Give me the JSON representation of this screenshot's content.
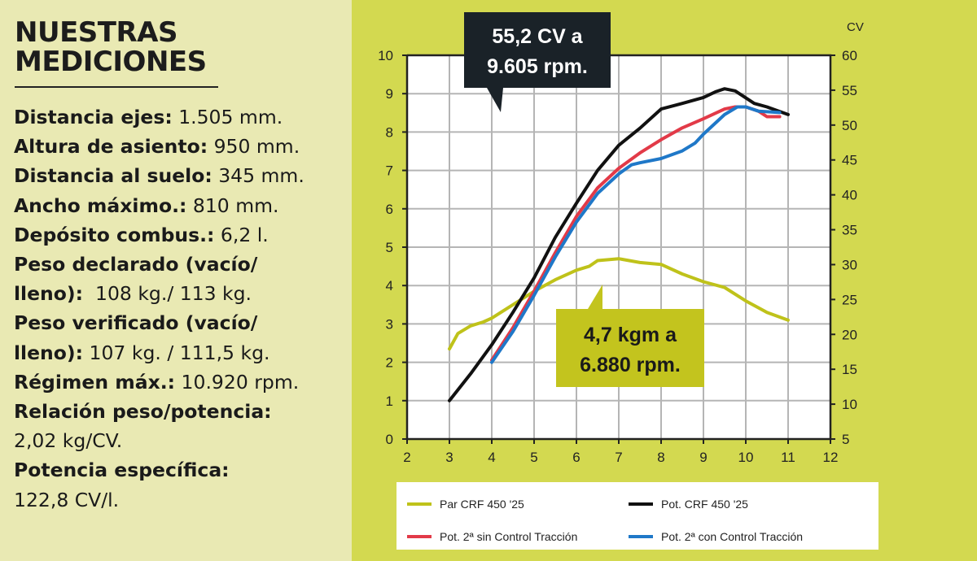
{
  "panel": {
    "title_line1": "NUESTRAS",
    "title_line2": "MEDICIONES",
    "specs": [
      {
        "label": "Distancia ejes:",
        "value": " 1.505 mm."
      },
      {
        "label": "Altura de asiento:",
        "value": " 950 mm."
      },
      {
        "label": "Distancia al suelo:",
        "value": " 345 mm."
      },
      {
        "label": "Ancho máximo.:",
        "value": " 810 mm."
      },
      {
        "label": "Depósito combus.:",
        "value": " 6,2 l."
      },
      {
        "label": "Peso declarado (vacío/",
        "value": ""
      },
      {
        "label": "lleno):",
        "value": "  108 kg./ 113 kg."
      },
      {
        "label": "Peso verificado (vacío/",
        "value": ""
      },
      {
        "label": "lleno):",
        "value": " 107 kg. / 111,5 kg."
      },
      {
        "label": "Régimen máx.:",
        "value": " 10.920 rpm."
      },
      {
        "label": "Relación peso/potencia:",
        "value": ""
      },
      {
        "label": "",
        "value": "2,02 kg/CV."
      },
      {
        "label": "Potencia específica:",
        "value": ""
      },
      {
        "label": "",
        "value": "122,8 CV/l."
      }
    ]
  },
  "chart_data": {
    "type": "line",
    "xlabel": "",
    "ylabel_left": "",
    "ylabel_right": "CV",
    "xlim": [
      2,
      12
    ],
    "xticks": [
      "2",
      "3",
      "4",
      "5",
      "6",
      "7",
      "8",
      "9",
      "10",
      "11",
      "12"
    ],
    "ylim_left": [
      0,
      10
    ],
    "yticks_left": [
      "0",
      "1",
      "2",
      "3",
      "4",
      "5",
      "6",
      "7",
      "8",
      "9",
      "10"
    ],
    "ylim_right": [
      5,
      60
    ],
    "yticks_right": [
      "5",
      "10",
      "15",
      "20",
      "25",
      "30",
      "35",
      "40",
      "45",
      "50",
      "55",
      "60"
    ],
    "grid": true,
    "legend_placement": "bottom",
    "annotations": {
      "power_peak_line1": "55,2 CV a",
      "power_peak_line2": "9.605 rpm.",
      "torque_peak_line1": "4,7 kgm a",
      "torque_peak_line2": "6.880 rpm."
    },
    "series": [
      {
        "name": "Par CRF 450 '25",
        "axis": "left",
        "color": "#bfc21a",
        "x": [
          3,
          3.2,
          3.5,
          3.8,
          4,
          4.5,
          5,
          5.5,
          6,
          6.3,
          6.5,
          7,
          7.5,
          8,
          8.5,
          9,
          9.5,
          10,
          10.5,
          11
        ],
        "y": [
          2.35,
          2.75,
          2.95,
          3.05,
          3.15,
          3.5,
          3.85,
          4.15,
          4.4,
          4.5,
          4.65,
          4.7,
          4.6,
          4.55,
          4.3,
          4.1,
          3.95,
          3.6,
          3.3,
          3.1
        ]
      },
      {
        "name": "Pot. CRF 450 '25",
        "axis": "right",
        "color": "#111111",
        "x": [
          3,
          3.5,
          4,
          4.5,
          5,
          5.5,
          6,
          6.5,
          7,
          7.5,
          8,
          8.5,
          9,
          9.3,
          9.5,
          9.75,
          10.2,
          10.5,
          11
        ],
        "y": [
          10.5,
          14.35,
          18.5,
          23.15,
          28.1,
          33.9,
          38.8,
          43.5,
          47.1,
          49.55,
          52.3,
          53.1,
          53.95,
          54.8,
          55.2,
          54.9,
          53.1,
          52.6,
          51.5
        ]
      },
      {
        "name": "Pot. 2ª sin Control Tracción",
        "axis": "right",
        "color": "#e23a48",
        "x": [
          4,
          4.5,
          5,
          5.5,
          6,
          6.5,
          7,
          7.5,
          8,
          8.5,
          9,
          9.5,
          9.75,
          10,
          10.3,
          10.5,
          10.8
        ],
        "y": [
          16.3,
          20.95,
          26.2,
          31.7,
          36.9,
          41.0,
          43.8,
          46.0,
          47.9,
          49.6,
          50.9,
          52.3,
          52.6,
          52.6,
          52.0,
          51.2,
          51.2
        ]
      },
      {
        "name": "Pot. 2ª con Control Tracción",
        "axis": "right",
        "color": "#1f78c8",
        "x": [
          4,
          4.5,
          5,
          5.5,
          6,
          6.5,
          7,
          7.3,
          7.5,
          8,
          8.5,
          8.8,
          9,
          9.5,
          9.8,
          10,
          10.3,
          10.8
        ],
        "y": [
          16.0,
          20.4,
          25.6,
          31.1,
          36.1,
          40.2,
          43.0,
          44.3,
          44.6,
          45.2,
          46.3,
          47.4,
          48.7,
          51.5,
          52.6,
          52.6,
          52.0,
          51.8
        ]
      }
    ]
  }
}
